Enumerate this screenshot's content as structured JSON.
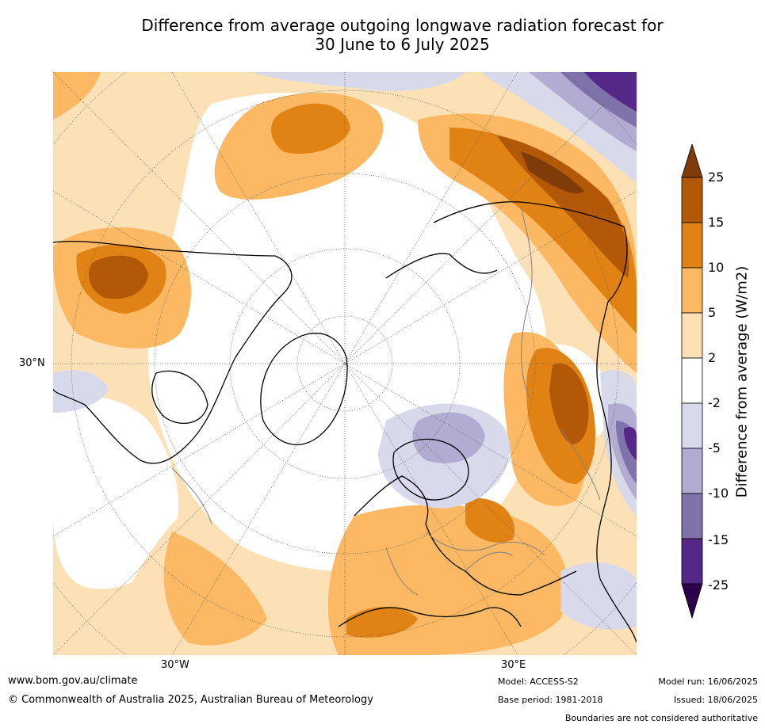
{
  "title_line1": "Difference from average outgoing longwave radiation forecast for",
  "title_line2": "30 June to 6 July 2025",
  "map": {
    "lat_label": "30°N",
    "lon_labels": {
      "west": "30°W",
      "east": "30°E"
    }
  },
  "colorbar": {
    "title": "Difference from average (W/m2)",
    "ticks": [
      "25",
      "15",
      "10",
      "5",
      "2",
      "-2",
      "-5",
      "-10",
      "-15",
      "-25"
    ],
    "colors": {
      "over": "#7f3b08",
      "15_25": "#b35806",
      "10_15": "#e08214",
      "5_10": "#fdb863",
      "2_5": "#fee0b6",
      "neutral": "#ffffff",
      "m5_m2": "#d8daeb",
      "m10_m5": "#b2abd2",
      "m15_m10": "#8073ac",
      "m25_m15": "#542788",
      "under": "#2d004b"
    }
  },
  "footer": {
    "url": "www.bom.gov.au/climate",
    "copyright": "© Commonwealth of Australia 2025, Australian Bureau of Meteorology",
    "model": "Model: ACCESS-S2",
    "base_period": "Base period: 1981-2018",
    "model_run": "Model run: 16/06/2025",
    "issued": "Issued: 18/06/2025",
    "disclaimer": "Boundaries are not considered authoritative"
  }
}
